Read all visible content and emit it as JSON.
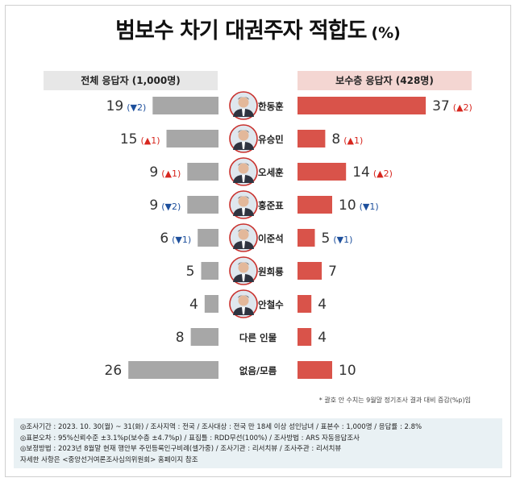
{
  "title": "범보수 차기 대권주자 적합도",
  "title_unit": "(%)",
  "left_header": "전체 응답자 (1,000명)",
  "right_header": "보수층 응답자 (428명)",
  "footnote": "* 괄호 안 수치는 9월말 정기조사 결과 대비 증감(%p)임",
  "info": [
    "◎조사기간 : 2023. 10. 30(월) ~ 31(화) / 조사지역 : 전국 / 조사대상 : 전국 만 18세 이상 성인남녀 / 표본수 : 1,000명 / 응답률 : 2.8%",
    "◎표본오차 : 95%신뢰수준 ±3.1%p(보수층 ±4.7%p) / 표집틀 : RDD무선(100%) / 조사방법 : ARS 자동응답조사",
    "◎보정방법 : 2023년 8월말 현재 행안부 주민등록인구비례(셀가중) / 조사기관 : 리서치뷰 / 조사주관 : 리서치뷰",
    "자세한 사항은 <중앙선거여론조사심의위원회> 홈페이지 참조"
  ],
  "colors": {
    "left_bar": "#a7a7a7",
    "right_bar": "#d9534a",
    "up": "#d7261e",
    "down": "#1d4f9c"
  },
  "chart_data": {
    "type": "bar",
    "categories": [
      "한동훈",
      "유승민",
      "오세훈",
      "홍준표",
      "이준석",
      "원희룡",
      "안철수",
      "다른 인물",
      "없음/모름"
    ],
    "has_photo": [
      true,
      true,
      true,
      true,
      true,
      true,
      true,
      false,
      false
    ],
    "series": [
      {
        "name": "전체 응답자 (1,000명)",
        "values": [
          19,
          15,
          9,
          9,
          6,
          5,
          4,
          8,
          26
        ],
        "changes": [
          {
            "dir": "down",
            "value": 2
          },
          {
            "dir": "up",
            "value": 1
          },
          {
            "dir": "up",
            "value": 1
          },
          {
            "dir": "down",
            "value": 2
          },
          {
            "dir": "down",
            "value": 1
          },
          null,
          null,
          null,
          null
        ]
      },
      {
        "name": "보수층 응답자 (428명)",
        "values": [
          37,
          8,
          14,
          10,
          5,
          7,
          4,
          4,
          10
        ],
        "changes": [
          {
            "dir": "up",
            "value": 2
          },
          {
            "dir": "up",
            "value": 1
          },
          {
            "dir": "up",
            "value": 2
          },
          {
            "dir": "down",
            "value": 1
          },
          {
            "dir": "down",
            "value": 1
          },
          null,
          null,
          null,
          null
        ]
      }
    ]
  }
}
